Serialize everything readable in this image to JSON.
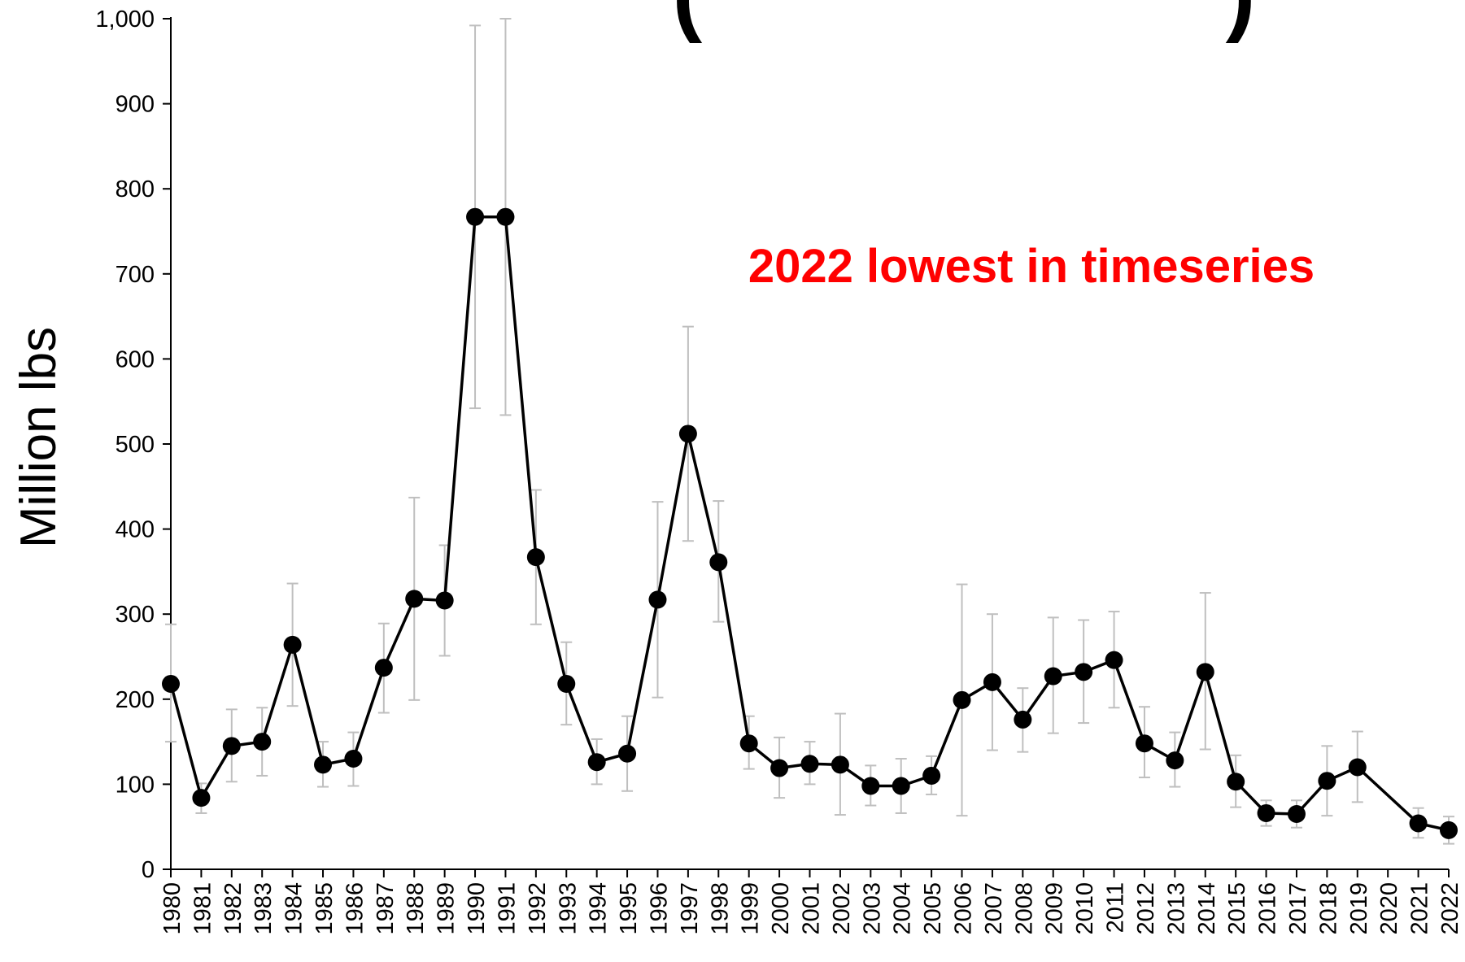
{
  "colors": {
    "series": "#000000",
    "error_bars": "#bfbfbf",
    "annotation": "#ff0000",
    "axis": "#000000"
  },
  "title_fragments": [
    "(",
    ")"
  ],
  "chart_data": {
    "type": "line",
    "ylabel": "Million lbs",
    "ylim": [
      0,
      1000
    ],
    "yticks": [
      0,
      100,
      200,
      300,
      400,
      500,
      600,
      700,
      800,
      900,
      1000
    ],
    "ytick_labels": [
      "0",
      "100",
      "200",
      "300",
      "400",
      "500",
      "600",
      "700",
      "800",
      "900",
      "1,000"
    ],
    "x": [
      1980,
      1981,
      1982,
      1983,
      1984,
      1985,
      1986,
      1987,
      1988,
      1989,
      1990,
      1991,
      1992,
      1993,
      1994,
      1995,
      1996,
      1997,
      1998,
      1999,
      2000,
      2001,
      2002,
      2003,
      2004,
      2005,
      2006,
      2007,
      2008,
      2009,
      2010,
      2011,
      2012,
      2013,
      2014,
      2015,
      2016,
      2017,
      2018,
      2019,
      2020,
      2021,
      2022
    ],
    "xtick_labels": [
      "1980",
      "1981",
      "1982",
      "1983",
      "1984",
      "1985",
      "1986",
      "1987",
      "1988",
      "1989",
      "1990",
      "1991",
      "1992",
      "1993",
      "1994",
      "1995",
      "1996",
      "1997",
      "1998",
      "1999",
      "2000",
      "2001",
      "2002",
      "2003",
      "2004",
      "2005",
      "2006",
      "2007",
      "2008",
      "2009",
      "2010",
      "2011",
      "2012",
      "2013",
      "2014",
      "2015",
      "2016",
      "2017",
      "2018",
      "2019",
      "2020",
      "2021",
      "2022"
    ],
    "series": [
      {
        "values": [
          218,
          84,
          145,
          150,
          264,
          123,
          130,
          237,
          318,
          316,
          767,
          767,
          367,
          218,
          126,
          136,
          317,
          512,
          361,
          148,
          119,
          124,
          123,
          98,
          98,
          110,
          199,
          220,
          176,
          227,
          232,
          246,
          148,
          128,
          232,
          103,
          66,
          65,
          104,
          120,
          null,
          54,
          46
        ],
        "lower": [
          150,
          66,
          103,
          110,
          192,
          97,
          98,
          184,
          199,
          251,
          542,
          534,
          288,
          170,
          100,
          92,
          202,
          386,
          291,
          118,
          84,
          100,
          64,
          75,
          66,
          88,
          63,
          140,
          138,
          160,
          172,
          190,
          108,
          97,
          141,
          73,
          51,
          49,
          63,
          79,
          null,
          37,
          30
        ],
        "upper": [
          288,
          101,
          188,
          190,
          336,
          150,
          161,
          289,
          437,
          381,
          992,
          1000,
          446,
          267,
          153,
          180,
          432,
          638,
          433,
          180,
          155,
          150,
          183,
          122,
          130,
          133,
          335,
          300,
          213,
          296,
          293,
          303,
          191,
          161,
          325,
          134,
          81,
          81,
          145,
          162,
          null,
          72,
          62
        ]
      }
    ],
    "annotations": [
      {
        "text": "2022 lowest in timeseries",
        "color": "#ff0000"
      }
    ],
    "grid": false,
    "legend": "none"
  }
}
